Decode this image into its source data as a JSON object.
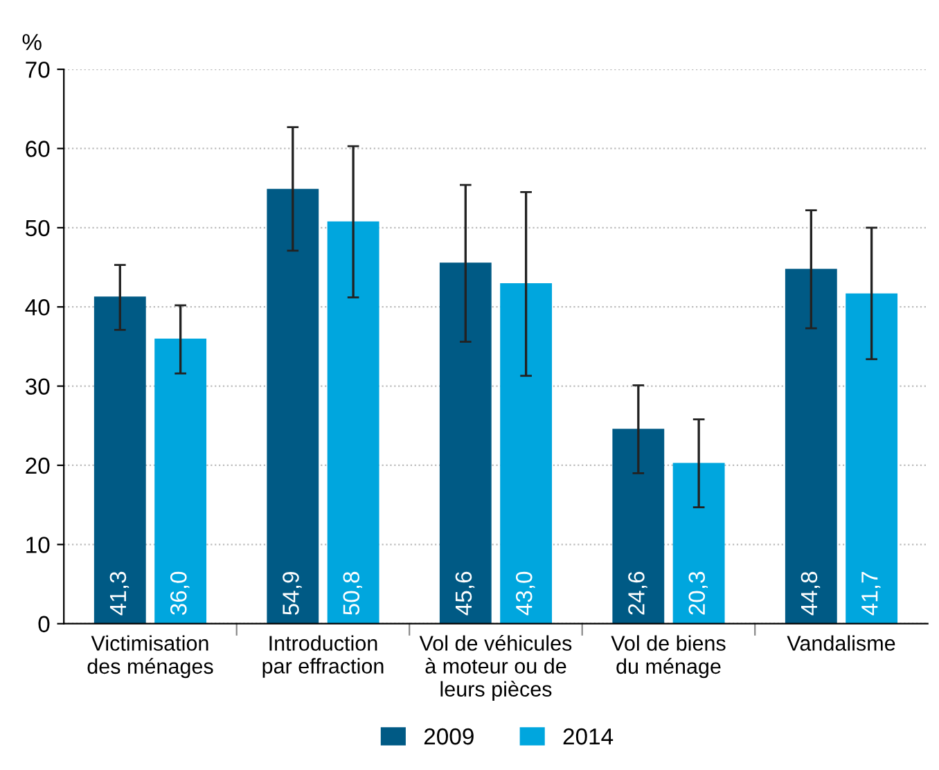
{
  "chart_data": {
    "type": "bar",
    "ylabel": "%",
    "categories": [
      "Victimisation\ndes ménages",
      "Introduction\npar effraction",
      "Vol de véhicules\nà moteur ou de\nleurs pièces",
      "Vol de biens\ndu ménage",
      "Vandalisme"
    ],
    "series": [
      {
        "name": "2009",
        "color": "#005a85",
        "values": [
          41.3,
          54.9,
          45.6,
          24.6,
          44.8
        ],
        "value_labels": [
          "41,3",
          "54,9",
          "45,6",
          "24,6",
          "44,8"
        ],
        "errors": [
          [
            37.1,
            45.3
          ],
          [
            47.1,
            62.7
          ],
          [
            35.6,
            55.4
          ],
          [
            19.0,
            30.1
          ],
          [
            37.3,
            52.2
          ]
        ]
      },
      {
        "name": "2014",
        "color": "#00a6de",
        "values": [
          36.0,
          50.8,
          43.0,
          20.3,
          41.7
        ],
        "value_labels": [
          "36,0",
          "50,8",
          "43,0",
          "20,3",
          "41,7"
        ],
        "errors": [
          [
            31.6,
            40.2
          ],
          [
            41.2,
            60.3
          ],
          [
            31.3,
            54.5
          ],
          [
            14.7,
            25.8
          ],
          [
            33.4,
            50.0
          ]
        ]
      }
    ],
    "ylim": [
      0,
      70
    ],
    "yticks": [
      0,
      10,
      20,
      30,
      40,
      50,
      60,
      70
    ],
    "grid": "y",
    "legend": "bottom"
  }
}
